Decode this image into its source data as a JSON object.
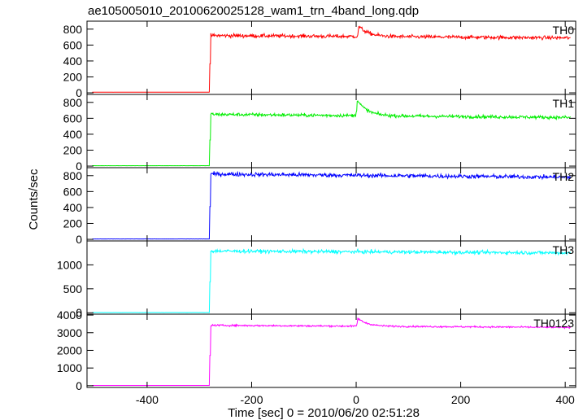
{
  "chart_data": {
    "type": "line",
    "title": "ae105005010_20100620025128_wam1_trn_4band_long.qdp",
    "xlabel": "Time [sec] 0 = 2010/06/20 02:51:28",
    "ylabel": "Counts/sec",
    "xlim": [
      -515,
      420
    ],
    "x_ticks": [
      -400,
      -200,
      0,
      200,
      400
    ],
    "grid": false,
    "panels": [
      {
        "name": "TH0",
        "color": "#ff0000",
        "ylim": [
          -20,
          900
        ],
        "y_ticks": [
          0,
          200,
          400,
          600,
          800
        ],
        "baseline": 8,
        "rise_time": -280,
        "plateau_start": 720,
        "plateau_end": 690,
        "noise": 22,
        "spike": {
          "x": 5,
          "height": 130
        }
      },
      {
        "name": "TH1",
        "color": "#00ee00",
        "ylim": [
          -20,
          900
        ],
        "y_ticks": [
          0,
          200,
          400,
          600,
          800
        ],
        "baseline": 5,
        "rise_time": -280,
        "plateau_start": 650,
        "plateau_end": 610,
        "noise": 20,
        "spike": {
          "x": 2,
          "height": 200
        }
      },
      {
        "name": "TH2",
        "color": "#0000ff",
        "ylim": [
          -20,
          900
        ],
        "y_ticks": [
          0,
          200,
          400,
          600,
          800
        ],
        "baseline": 5,
        "rise_time": -280,
        "plateau_start": 820,
        "plateau_end": 780,
        "noise": 25,
        "spike": {
          "x": 0,
          "height": 0
        }
      },
      {
        "name": "TH3",
        "color": "#00ffff",
        "ylim": [
          -30,
          1500
        ],
        "y_ticks": [
          0,
          500,
          1000
        ],
        "baseline": 5,
        "rise_time": -280,
        "plateau_start": 1290,
        "plateau_end": 1250,
        "noise": 35,
        "spike": {
          "x": 0,
          "height": 0
        }
      },
      {
        "name": "TH0123",
        "color": "#ff00ff",
        "ylim": [
          -100,
          4050
        ],
        "y_ticks": [
          0,
          1000,
          2000,
          3000,
          4000
        ],
        "baseline": 15,
        "rise_time": -280,
        "plateau_start": 3420,
        "plateau_end": 3300,
        "noise": 45,
        "spike": {
          "x": 3,
          "height": 450
        }
      }
    ]
  }
}
